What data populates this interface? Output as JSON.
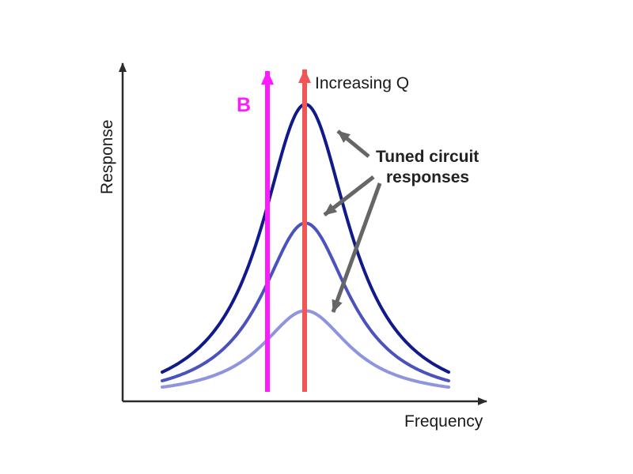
{
  "diagram": {
    "axes": {
      "x_label": "Frequency",
      "y_label": "Response"
    },
    "labels": {
      "increasing_q": "Increasing Q",
      "tuned_line1": "Tuned circuit",
      "tuned_line2": "responses",
      "bandwidth": "B"
    },
    "curves": [
      {
        "name": "high-q",
        "peak": 1.0,
        "width": 1.0,
        "color": "#101a8a"
      },
      {
        "name": "medium-q",
        "peak": 0.58,
        "width": 1.0,
        "color": "#4a52bd"
      },
      {
        "name": "low-q",
        "peak": 0.27,
        "width": 1.0,
        "color": "#8f94de"
      }
    ],
    "colors": {
      "axis": "#2b2b2b",
      "q_arrow": "#f05656",
      "b_arrow": "#ff19ff",
      "b_text": "#ff19ff",
      "pointer": "#666666"
    }
  }
}
